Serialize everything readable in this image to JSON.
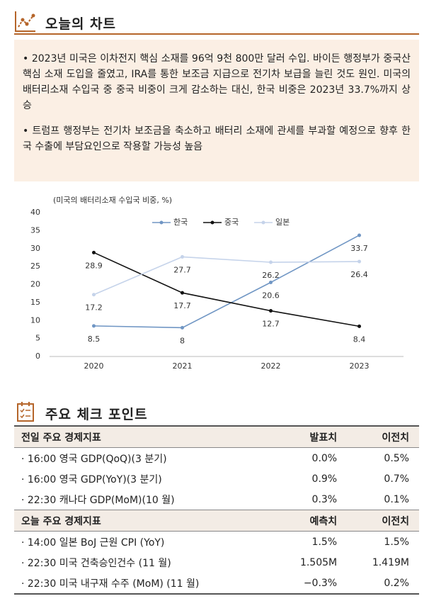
{
  "header": {
    "title": "오늘의 차트"
  },
  "summary": [
    "• 2023년 미국은 이차전지 핵심 소재를 96억 9천 800만 달러 수입. 바이든 행정부가 중국산 핵심 소재 도입을 줄였고, IRA를 통한 보조금 지급으로 전기차 보급을 늘린 것도 원인. 미국의 배터리소재 수입국 중 중국 비중이 크게 감소하는 대신, 한국 비중은 2023년 33.7%까지 상승",
    "• 트럼프 행정부는 전기차 보조금을 축소하고 배터리 소재에 관세를 부과할 예정으로 향후 한국 수출에 부담요인으로 작용할 가능성 높음"
  ],
  "chart_data": {
    "type": "line",
    "y_label": "(미국의 배터리소재 수입국 비중, %)",
    "categories": [
      "2020",
      "2021",
      "2022",
      "2023"
    ],
    "series": [
      {
        "name": "한국",
        "color": "#7096c4",
        "values": [
          8.5,
          8,
          20.6,
          33.7
        ]
      },
      {
        "name": "중국",
        "color": "#111111",
        "values": [
          28.9,
          17.7,
          12.7,
          8.4
        ]
      },
      {
        "name": "일본",
        "color": "#c5d3ea",
        "values": [
          17.2,
          27.7,
          26.2,
          26.4
        ]
      }
    ],
    "ylim": [
      0,
      40
    ],
    "yticks": [
      0,
      5,
      10,
      15,
      20,
      25,
      30,
      35,
      40
    ],
    "legend": "top",
    "data_labels": true
  },
  "checkpoints": {
    "title": "주요 체크 포인트",
    "tables": [
      {
        "header": [
          "전일 주요 경제지표",
          "발표치",
          "이전치"
        ],
        "rows": [
          [
            "· 16:00 영국 GDP(QoQ)(3 분기)",
            "0.0%",
            "0.5%"
          ],
          [
            "· 16:00 영국 GDP(YoY)(3 분기)",
            "0.9%",
            "0.7%"
          ],
          [
            "· 22:30 캐나다 GDP(MoM)(10 월)",
            "0.3%",
            "0.1%"
          ]
        ]
      },
      {
        "header": [
          "오늘 주요 경제지표",
          "예측치",
          "이전치"
        ],
        "rows": [
          [
            "· 14:00 일본 BoJ 근원 CPI (YoY)",
            "1.5%",
            "1.5%"
          ],
          [
            "· 22:30 미국 건축승인건수 (11 월)",
            "1.505M",
            "1.419M"
          ],
          [
            "· 22:30 미국 내구재 수주 (MoM) (11 월)",
            "−0.3%",
            "0.2%"
          ]
        ]
      }
    ]
  }
}
